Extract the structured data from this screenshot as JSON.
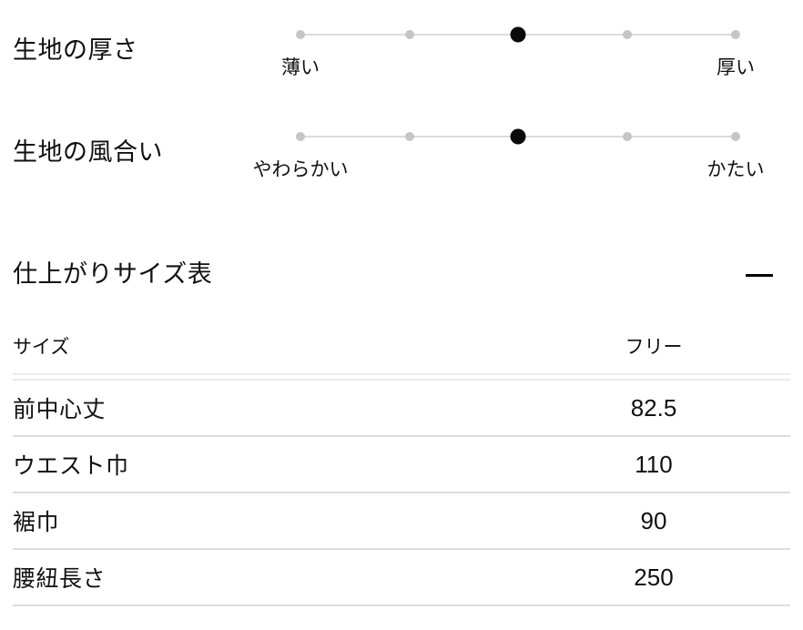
{
  "colors": {
    "text": "#111111",
    "track": "#dcdcdc",
    "dot": "#c5c5c5",
    "dot_active": "#0a0a0a",
    "row_border": "#dcdcdc",
    "header_border": "#ececec"
  },
  "fabric_scales": [
    {
      "label": "生地の厚さ",
      "left_label": "薄い",
      "right_label": "厚い",
      "steps": 5,
      "selected": 3
    },
    {
      "label": "生地の風合い",
      "left_label": "やわらかい",
      "right_label": "かたい",
      "steps": 5,
      "selected": 3
    }
  ],
  "size_section": {
    "title": "仕上がりサイズ表",
    "collapse_icon": "minus-icon",
    "table": {
      "header": {
        "label_col": "サイズ",
        "value_col": "フリー"
      },
      "rows": [
        {
          "label": "前中心丈",
          "value": "82.5"
        },
        {
          "label": "ウエスト巾",
          "value": "110"
        },
        {
          "label": "裾巾",
          "value": "90"
        },
        {
          "label": "腰紐長さ",
          "value": "250"
        }
      ]
    }
  }
}
